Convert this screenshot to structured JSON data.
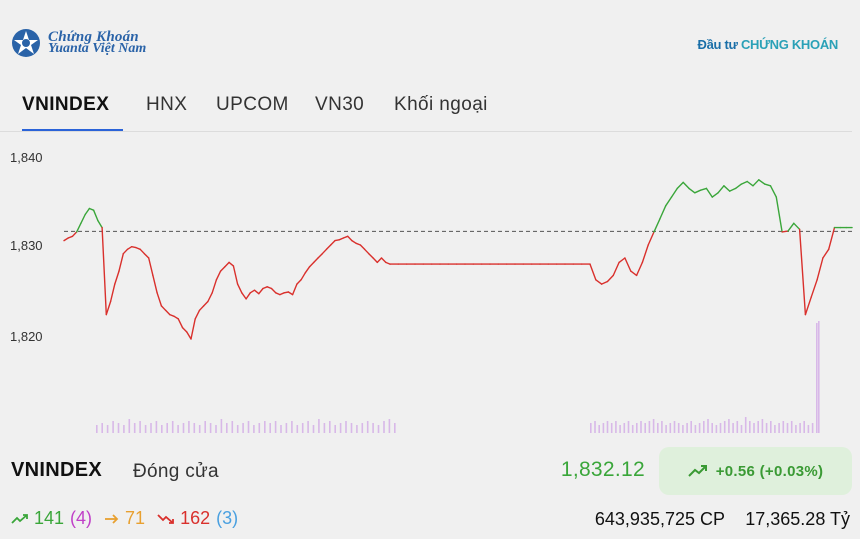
{
  "header": {
    "logo_line1": "Chứng Khoán",
    "logo_line2": "Yuanta Việt Nam",
    "partner_part1": "Đầu tư",
    "partner_part2": "CHỨNG KHOÁN"
  },
  "tabs": [
    {
      "label": "VNINDEX",
      "active": true
    },
    {
      "label": "HNX",
      "active": false
    },
    {
      "label": "UPCOM",
      "active": false
    },
    {
      "label": "VN30",
      "active": false
    },
    {
      "label": "Khối ngoại",
      "active": false
    }
  ],
  "chart_data": {
    "type": "line",
    "y_ticks": [
      "1,840",
      "1,830",
      "1,820"
    ],
    "ylim": [
      1810,
      1843
    ],
    "reference": 1831.56,
    "series": [
      {
        "values": [
          1830.5,
          1830.8,
          1831.0,
          1831.5,
          1832.5,
          1833.5,
          1834.2,
          1834.0,
          1832.8,
          1832.0,
          1822.0,
          1823.5,
          1825.5,
          1827.0,
          1829.0,
          1829.5,
          1829.8,
          1829.7,
          1829.5,
          1829.0,
          1828.5,
          1826.5,
          1824.5,
          1823.0,
          1822.5,
          1822.0,
          1821.8,
          1821.5,
          1820.5,
          1820.0,
          1819.2,
          1821.5,
          1822.5,
          1823.0,
          1823.5,
          1824.5,
          1826.0,
          1827.0,
          1827.5,
          1828.0,
          1827.6,
          1825.5,
          1824.5,
          1823.8,
          1824.5,
          1824.8,
          1824.4,
          1825.0,
          1825.2,
          1825.0,
          1824.5,
          1824.3,
          1824.5,
          1824.6,
          1824.3,
          1825.5,
          1826.0,
          1826.8,
          1827.5,
          1828.0,
          1828.5,
          1829.0,
          1829.5,
          1830.0,
          1830.5,
          1830.6,
          1830.8,
          1831.0,
          1830.5,
          1830.2,
          1830.0,
          1829.5,
          1829.0,
          1828.5,
          1828.0,
          1828.5,
          1828.0,
          1827.8
        ],
        "color": "#d9302c"
      },
      {
        "values": [
          1827.8,
          1827.8,
          1827.8,
          1827.8,
          1827.8,
          1827.8,
          1827.8,
          1827.8,
          1827.8,
          1827.8,
          1827.8,
          1827.8,
          1827.8,
          1827.8,
          1827.8,
          1827.8,
          1827.8,
          1827.8,
          1827.8,
          1827.8,
          1827.8,
          1827.8,
          1827.8,
          1827.8,
          1827.8
        ],
        "color": "#d9302c"
      },
      {
        "values": [
          1827.8,
          1826.0,
          1825.5,
          1825.8,
          1826.5,
          1828.0,
          1828.5,
          1827.0,
          1826.5,
          1828.0,
          1830.0,
          1831.5,
          1833.0,
          1834.5,
          1835.5,
          1836.5,
          1837.2,
          1836.5,
          1836.0,
          1836.3,
          1836.5,
          1835.5,
          1836.0,
          1836.8,
          1836.2,
          1836.5,
          1837.0,
          1837.3,
          1836.8,
          1837.5,
          1837.0,
          1836.8,
          1835.5,
          1831.5,
          1831.6,
          1832.5,
          1831.8,
          1822.0,
          1824.0,
          1826.0,
          1828.5,
          1829.5,
          1832.0,
          1832.0,
          1832.0,
          1832.0
        ],
        "color": "#3aa63a"
      }
    ],
    "volume": [
      0.2,
      0.25,
      0.2,
      0.3,
      0.25,
      0.2,
      0.35,
      0.25,
      0.3,
      0.2,
      0.25,
      0.3,
      0.2,
      0.25,
      0.3,
      0.2,
      0.25,
      0.3,
      0.25,
      0.2,
      0.3,
      0.25,
      0.2,
      0.35,
      0.25,
      0.3,
      0.2,
      0.25,
      0.3,
      0.2,
      0.25,
      0.3,
      0.25,
      0.3,
      0.2,
      0.25,
      0.3,
      0.2,
      0.25,
      0.3,
      0.2,
      0.35,
      0.25,
      0.3,
      0.2,
      0.25,
      0.3,
      0.25,
      0.2,
      0.25,
      0.3,
      0.25,
      0.2,
      0.3,
      0.35,
      0.25,
      0.3,
      0.2,
      0.25,
      0.3,
      0.25,
      0.3,
      0.2,
      0.25,
      0.3,
      0.2,
      0.25,
      0.3,
      0.25,
      0.3,
      0.35,
      0.25,
      0.3,
      0.2,
      0.25,
      0.3,
      0.25,
      0.2,
      0.25,
      0.3,
      0.2,
      0.25,
      0.3,
      0.35,
      0.25,
      0.2,
      0.25,
      0.3,
      0.35,
      0.25,
      0.3,
      0.2,
      0.4,
      0.3,
      0.25,
      0.3,
      0.35,
      0.25,
      0.3,
      0.2,
      0.25,
      0.3,
      0.25,
      0.3,
      0.2,
      0.25,
      0.3,
      0.2,
      0.25,
      1.0
    ]
  },
  "summary": {
    "symbol": "VNINDEX",
    "status": "Đóng cửa",
    "price": "1,832.12",
    "change": "+0.56 (+0.03%)"
  },
  "breadth": {
    "advancers": "141",
    "ceiling": "(4)",
    "unchanged": "71",
    "decliners": "162",
    "floor": "(3)"
  },
  "totals": {
    "volume": "643,935,725 CP",
    "value": "17,365.28 Tỷ"
  },
  "colors": {
    "up": "#3aa63a",
    "down": "#d9302c",
    "flat": "#e8a030",
    "ceiling": "#c040c8",
    "floor": "#4aa0e0",
    "accent": "#2a63d8"
  }
}
